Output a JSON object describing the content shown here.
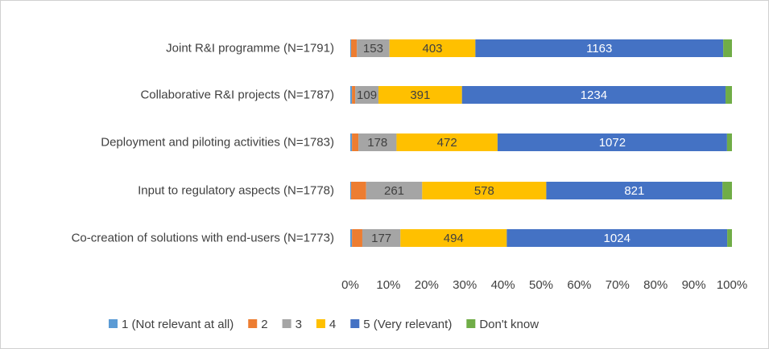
{
  "chart_data": {
    "type": "stacked_bar_100",
    "orientation": "horizontal",
    "categories": [
      "Joint R&I programme (N=1791)",
      "Collaborative R&I projects (N=1787)",
      "Deployment and piloting activities (N=1783)",
      "Input to regulatory aspects (N=1778)",
      "Co-creation of solutions with end-users (N=1773)"
    ],
    "series": [
      {
        "name": "1 (Not relevant at all)",
        "color": "#5b9bd5",
        "values": [
          4,
          8,
          8,
          4,
          8
        ]
      },
      {
        "name": "2",
        "color": "#ed7d31",
        "values": [
          27,
          15,
          30,
          70,
          48
        ]
      },
      {
        "name": "3",
        "color": "#a5a5a5",
        "values": [
          153,
          109,
          178,
          261,
          177
        ],
        "data_labels": true,
        "label_color": "#404040"
      },
      {
        "name": "4",
        "color": "#ffc000",
        "values": [
          403,
          391,
          472,
          578,
          494
        ],
        "data_labels": true,
        "label_color": "#404040"
      },
      {
        "name": "5 (Very relevant)",
        "color": "#4472c4",
        "values": [
          1163,
          1234,
          1072,
          821,
          1024
        ],
        "data_labels": true,
        "label_color": "#ffffff"
      },
      {
        "name": "Don't know",
        "color": "#70ad47",
        "values": [
          41,
          30,
          23,
          44,
          22
        ]
      }
    ],
    "xlim": [
      0,
      100
    ],
    "xticks": [
      {
        "value": 0,
        "label": "0%"
      },
      {
        "value": 10,
        "label": "10%"
      },
      {
        "value": 20,
        "label": "20%"
      },
      {
        "value": 30,
        "label": "30%"
      },
      {
        "value": 40,
        "label": "40%"
      },
      {
        "value": 50,
        "label": "50%"
      },
      {
        "value": 60,
        "label": "60%"
      },
      {
        "value": 70,
        "label": "70%"
      },
      {
        "value": 80,
        "label": "80%"
      },
      {
        "value": 90,
        "label": "90%"
      },
      {
        "value": 100,
        "label": "100%"
      }
    ],
    "legend": "bottom"
  }
}
